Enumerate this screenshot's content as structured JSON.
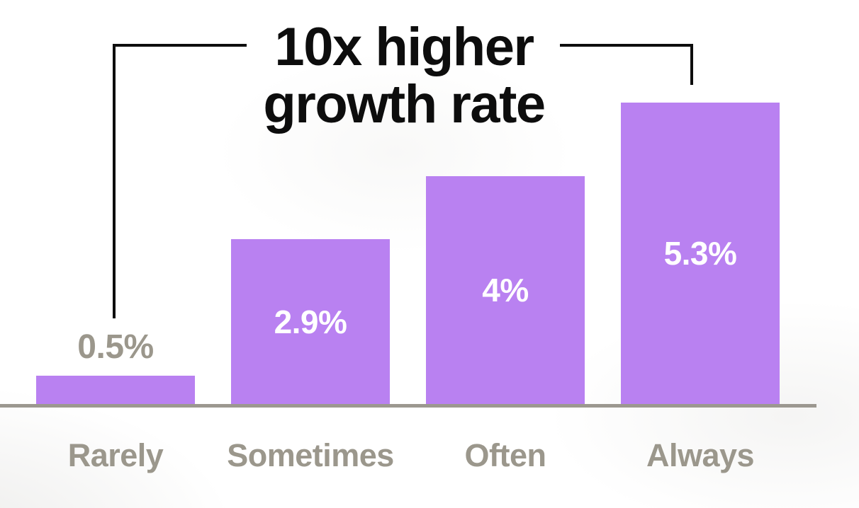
{
  "annotation": {
    "line1": "10x higher",
    "line2": "growth rate",
    "connects": [
      "Rarely",
      "Always"
    ]
  },
  "chart_data": {
    "type": "bar",
    "title": "10x higher growth rate",
    "categories": [
      "Rarely",
      "Sometimes",
      "Often",
      "Always"
    ],
    "values": [
      0.5,
      2.9,
      4,
      5.3
    ],
    "value_labels": [
      "0.5%",
      "2.9%",
      "4%",
      "5.3%"
    ],
    "value_label_position": [
      "above",
      "inside",
      "inside",
      "inside"
    ],
    "xlabel": "",
    "ylabel": "",
    "ylim": [
      0,
      5.5
    ],
    "grid": false,
    "legend": false,
    "colors": {
      "bar": "#b981f1",
      "title": "#0d0d0d",
      "bracket_line": "#0d0d0d",
      "axis_line": "#9c9890",
      "category_label": "#9b978c",
      "value_label_above": "#9b978c",
      "value_label_inside": "#ffffff"
    }
  }
}
